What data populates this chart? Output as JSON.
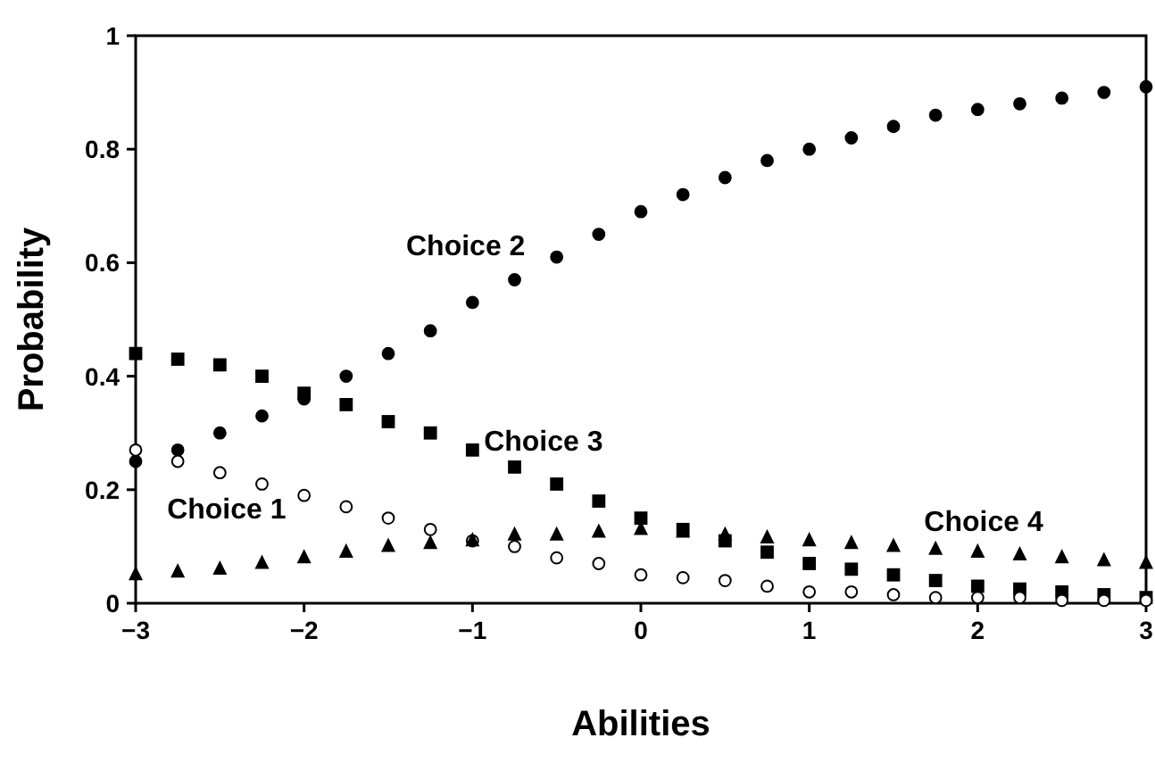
{
  "chart_data": {
    "type": "scatter",
    "xlabel": "Abilities",
    "ylabel": "Probability",
    "x": [
      -3,
      -2.75,
      -2.5,
      -2.25,
      -2,
      -1.75,
      -1.5,
      -1.25,
      -1,
      -0.75,
      -0.5,
      -0.25,
      0,
      0.25,
      0.5,
      0.75,
      1,
      1.25,
      1.5,
      1.75,
      2,
      2.25,
      2.5,
      2.75,
      3
    ],
    "xlim": [
      -3,
      3
    ],
    "ylim": [
      0,
      1
    ],
    "xticks": [
      {
        "value": -3,
        "label": "−3"
      },
      {
        "value": -2,
        "label": "−2"
      },
      {
        "value": -1,
        "label": "−1"
      },
      0,
      1,
      2,
      3
    ],
    "yticks": [
      0,
      0.2,
      0.4,
      0.6,
      0.8,
      1
    ],
    "grid": false,
    "series": [
      {
        "name": "Choice 2",
        "color": "#000000",
        "marker": "circle",
        "values": [
          0.25,
          0.27,
          0.3,
          0.33,
          0.36,
          0.4,
          0.44,
          0.48,
          0.53,
          0.57,
          0.61,
          0.65,
          0.69,
          0.72,
          0.75,
          0.78,
          0.8,
          0.82,
          0.84,
          0.86,
          0.87,
          0.88,
          0.89,
          0.9,
          0.91
        ]
      },
      {
        "name": "Choice 3",
        "color": "#000000",
        "marker": "square",
        "values": [
          0.44,
          0.43,
          0.42,
          0.4,
          0.37,
          0.35,
          0.32,
          0.3,
          0.27,
          0.24,
          0.21,
          0.18,
          0.15,
          0.13,
          0.11,
          0.09,
          0.07,
          0.06,
          0.05,
          0.04,
          0.03,
          0.025,
          0.02,
          0.015,
          0.01
        ]
      },
      {
        "name": "Choice 1",
        "color": "#ffffff",
        "marker": "circle",
        "values": [
          0.27,
          0.25,
          0.23,
          0.21,
          0.19,
          0.17,
          0.15,
          0.13,
          0.11,
          0.1,
          0.08,
          0.07,
          0.05,
          0.045,
          0.04,
          0.03,
          0.02,
          0.02,
          0.015,
          0.01,
          0.01,
          0.01,
          0.005,
          0.005,
          0.005
        ]
      },
      {
        "name": "Choice 4",
        "color": "#000000",
        "marker": "triangle",
        "values": [
          0.05,
          0.055,
          0.06,
          0.07,
          0.08,
          0.09,
          0.1,
          0.105,
          0.11,
          0.12,
          0.12,
          0.125,
          0.13,
          0.125,
          0.12,
          0.115,
          0.11,
          0.105,
          0.1,
          0.095,
          0.09,
          0.085,
          0.08,
          0.075,
          0.07
        ]
      }
    ]
  }
}
